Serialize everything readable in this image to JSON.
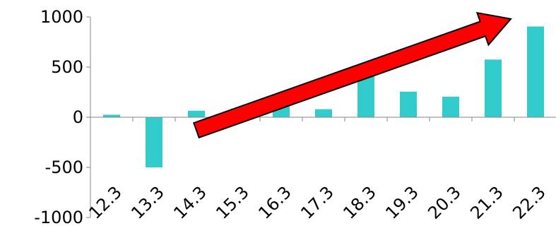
{
  "chart_data": {
    "type": "bar",
    "title": "",
    "xlabel": "",
    "ylabel": "",
    "categories": [
      "12.3",
      "13.3",
      "14.3",
      "15.3",
      "16.3",
      "17.3",
      "18.3",
      "19.3",
      "20.3",
      "21.3",
      "22.3"
    ],
    "values": [
      25,
      -500,
      65,
      5,
      135,
      80,
      420,
      255,
      205,
      575,
      905
    ],
    "ylim": [
      -1000,
      1000
    ],
    "yticks": [
      "1000",
      "500",
      "0",
      "-500",
      "-1000"
    ],
    "grid": false,
    "legend": "none",
    "colors": {
      "bar": "#33CCCC",
      "arrow_fill": "#FF0000",
      "arrow_stroke": "#000000",
      "axis": "#868686"
    },
    "annotations": [
      {
        "type": "arrow",
        "from": {
          "category": "14.3",
          "value": -130
        },
        "to": {
          "category": "22.3",
          "value": 980
        }
      }
    ]
  }
}
